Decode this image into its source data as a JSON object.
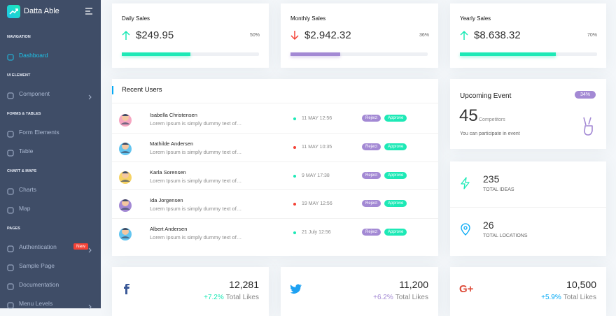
{
  "sidebar": {
    "brand": "Datta Able",
    "menu": [
      {
        "caption": "NAVIGATION",
        "items": [
          {
            "label": "Dashboard",
            "active": true
          }
        ]
      },
      {
        "caption": "UI ELEMENT",
        "items": [
          {
            "label": "Component",
            "has_children": true
          }
        ]
      },
      {
        "caption": "FORMS & TABLES",
        "items": [
          {
            "label": "Form Elements"
          },
          {
            "label": "Table"
          }
        ]
      },
      {
        "caption": "CHART & MAPS",
        "items": [
          {
            "label": "Charts"
          },
          {
            "label": "Map"
          }
        ]
      },
      {
        "caption": "PAGES",
        "items": [
          {
            "label": "Authentication",
            "badge": "New",
            "has_children": true
          },
          {
            "label": "Sample Page"
          },
          {
            "label": "Documentation"
          },
          {
            "label": "Menu Levels",
            "has_children": true
          }
        ]
      }
    ]
  },
  "sales_cards": [
    {
      "title": "Daily Sales",
      "amount": "$249.95",
      "trend": "up",
      "progress": {
        "value": 50,
        "label": "50%"
      },
      "color": "#1de9b6"
    },
    {
      "title": "Monthly Sales",
      "amount": "$2.942.32",
      "trend": "down",
      "progress": {
        "value": 36,
        "label": "36%"
      },
      "color": "#a389d4"
    },
    {
      "title": "Yearly Sales",
      "amount": "$8.638.32",
      "trend": "up",
      "progress": {
        "value": 70,
        "label": "70%"
      },
      "color": "#1de9b6"
    }
  ],
  "recent_users": {
    "title": "Recent Users",
    "rows": [
      {
        "name": "Isabella Christensen",
        "text": "Lorem Ipsum is simply dummy text of…",
        "date": "11 MAY 12:56",
        "dot_color": "#1de9b6",
        "reject": "Reject",
        "approve": "Approve"
      },
      {
        "name": "Mathilde Andersen",
        "text": "Lorem Ipsum is simply dummy text of…",
        "date": "11 MAY 10:35",
        "dot_color": "#f44236",
        "reject": "Reject",
        "approve": "Approve"
      },
      {
        "name": "Karla Sorensen",
        "text": "Lorem Ipsum is simply dummy text of…",
        "date": "9 MAY 17:38",
        "dot_color": "#1de9b6",
        "reject": "Reject",
        "approve": "Approve"
      },
      {
        "name": "Ida Jorgensen",
        "text": "Lorem Ipsum is simply dummy text of…",
        "date": "19 MAY 12:56",
        "dot_color": "#f44236",
        "reject": "Reject",
        "approve": "Approve"
      },
      {
        "name": "Albert Andersen",
        "text": "Lorem Ipsum is simply dummy text of…",
        "date": "21 July 12:56",
        "dot_color": "#1de9b6",
        "reject": "Reject",
        "approve": "Approve"
      }
    ]
  },
  "event": {
    "title": "Upcoming Event",
    "badge": "34%",
    "count": "45",
    "count_label": "Competitors",
    "note": "You can participate in event"
  },
  "stats": [
    {
      "value": "235",
      "label": "TOTAL IDEAS"
    },
    {
      "value": "26",
      "label": "TOTAL LOCATIONS"
    }
  ],
  "social": [
    {
      "count": "12,281",
      "change": "+7.2%",
      "change_color": "#1de9b6",
      "label": "Total Likes"
    },
    {
      "count": "11,200",
      "change": "+6.2%",
      "change_color": "#a389d4",
      "label": "Total Likes"
    },
    {
      "count": "10,500",
      "change": "+5.9%",
      "change_color": "#04a9f5",
      "label": "Total Likes"
    }
  ]
}
